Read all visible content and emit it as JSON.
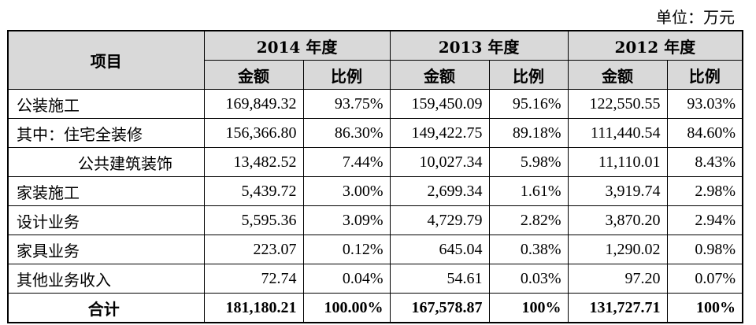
{
  "unit_label": "单位：万元",
  "header": {
    "item": "项目",
    "years": [
      "2014 年度",
      "2013 年度",
      "2012 年度"
    ],
    "amount": "金额",
    "ratio": "比例"
  },
  "rows": [
    {
      "name": "公装施工",
      "v": [
        "169,849.32",
        "93.75%",
        "159,450.09",
        "95.16%",
        "122,550.55",
        "93.03%"
      ]
    },
    {
      "name": "其中：住宅全装修",
      "v": [
        "156,366.80",
        "86.30%",
        "149,422.75",
        "89.18%",
        "111,440.54",
        "84.60%"
      ]
    },
    {
      "name": "公共建筑装饰",
      "v": [
        "13,482.52",
        "7.44%",
        "10,027.34",
        "5.98%",
        "11,110.01",
        "8.43%"
      ]
    },
    {
      "name": "家装施工",
      "v": [
        "5,439.72",
        "3.00%",
        "2,699.34",
        "1.61%",
        "3,919.74",
        "2.98%"
      ]
    },
    {
      "name": "设计业务",
      "v": [
        "5,595.36",
        "3.09%",
        "4,729.79",
        "2.82%",
        "3,870.20",
        "2.94%"
      ]
    },
    {
      "name": "家具业务",
      "v": [
        "223.07",
        "0.12%",
        "645.04",
        "0.38%",
        "1,290.02",
        "0.98%"
      ]
    },
    {
      "name": "其他业务收入",
      "v": [
        "72.74",
        "0.04%",
        "54.61",
        "0.03%",
        "97.20",
        "0.07%"
      ]
    }
  ],
  "total": {
    "name": "合计",
    "v": [
      "181,180.21",
      "100.00%",
      "167,578.87",
      "100%",
      "131,727.71",
      "100%"
    ]
  }
}
